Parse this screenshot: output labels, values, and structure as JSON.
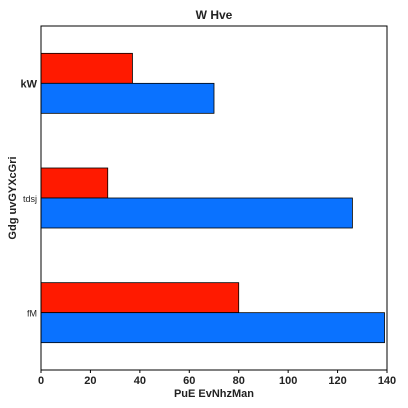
{
  "chart_data": {
    "type": "bar",
    "orientation": "horizontal",
    "title": "W Hve",
    "xlabel": "PuE EvNhzMan",
    "ylabel": "Gdg uvGYXcGri",
    "categories": [
      "kW",
      "tdsj",
      "fM"
    ],
    "series": [
      {
        "values": [
          37,
          27,
          80
        ],
        "color": "#ff1a00"
      },
      {
        "values": [
          70,
          126,
          139
        ],
        "color": "#0a72ff"
      }
    ],
    "xlim": [
      0,
      140
    ],
    "xticks": [
      0,
      20,
      40,
      60,
      80,
      100,
      120,
      140
    ],
    "grid": false,
    "legend": "none"
  }
}
